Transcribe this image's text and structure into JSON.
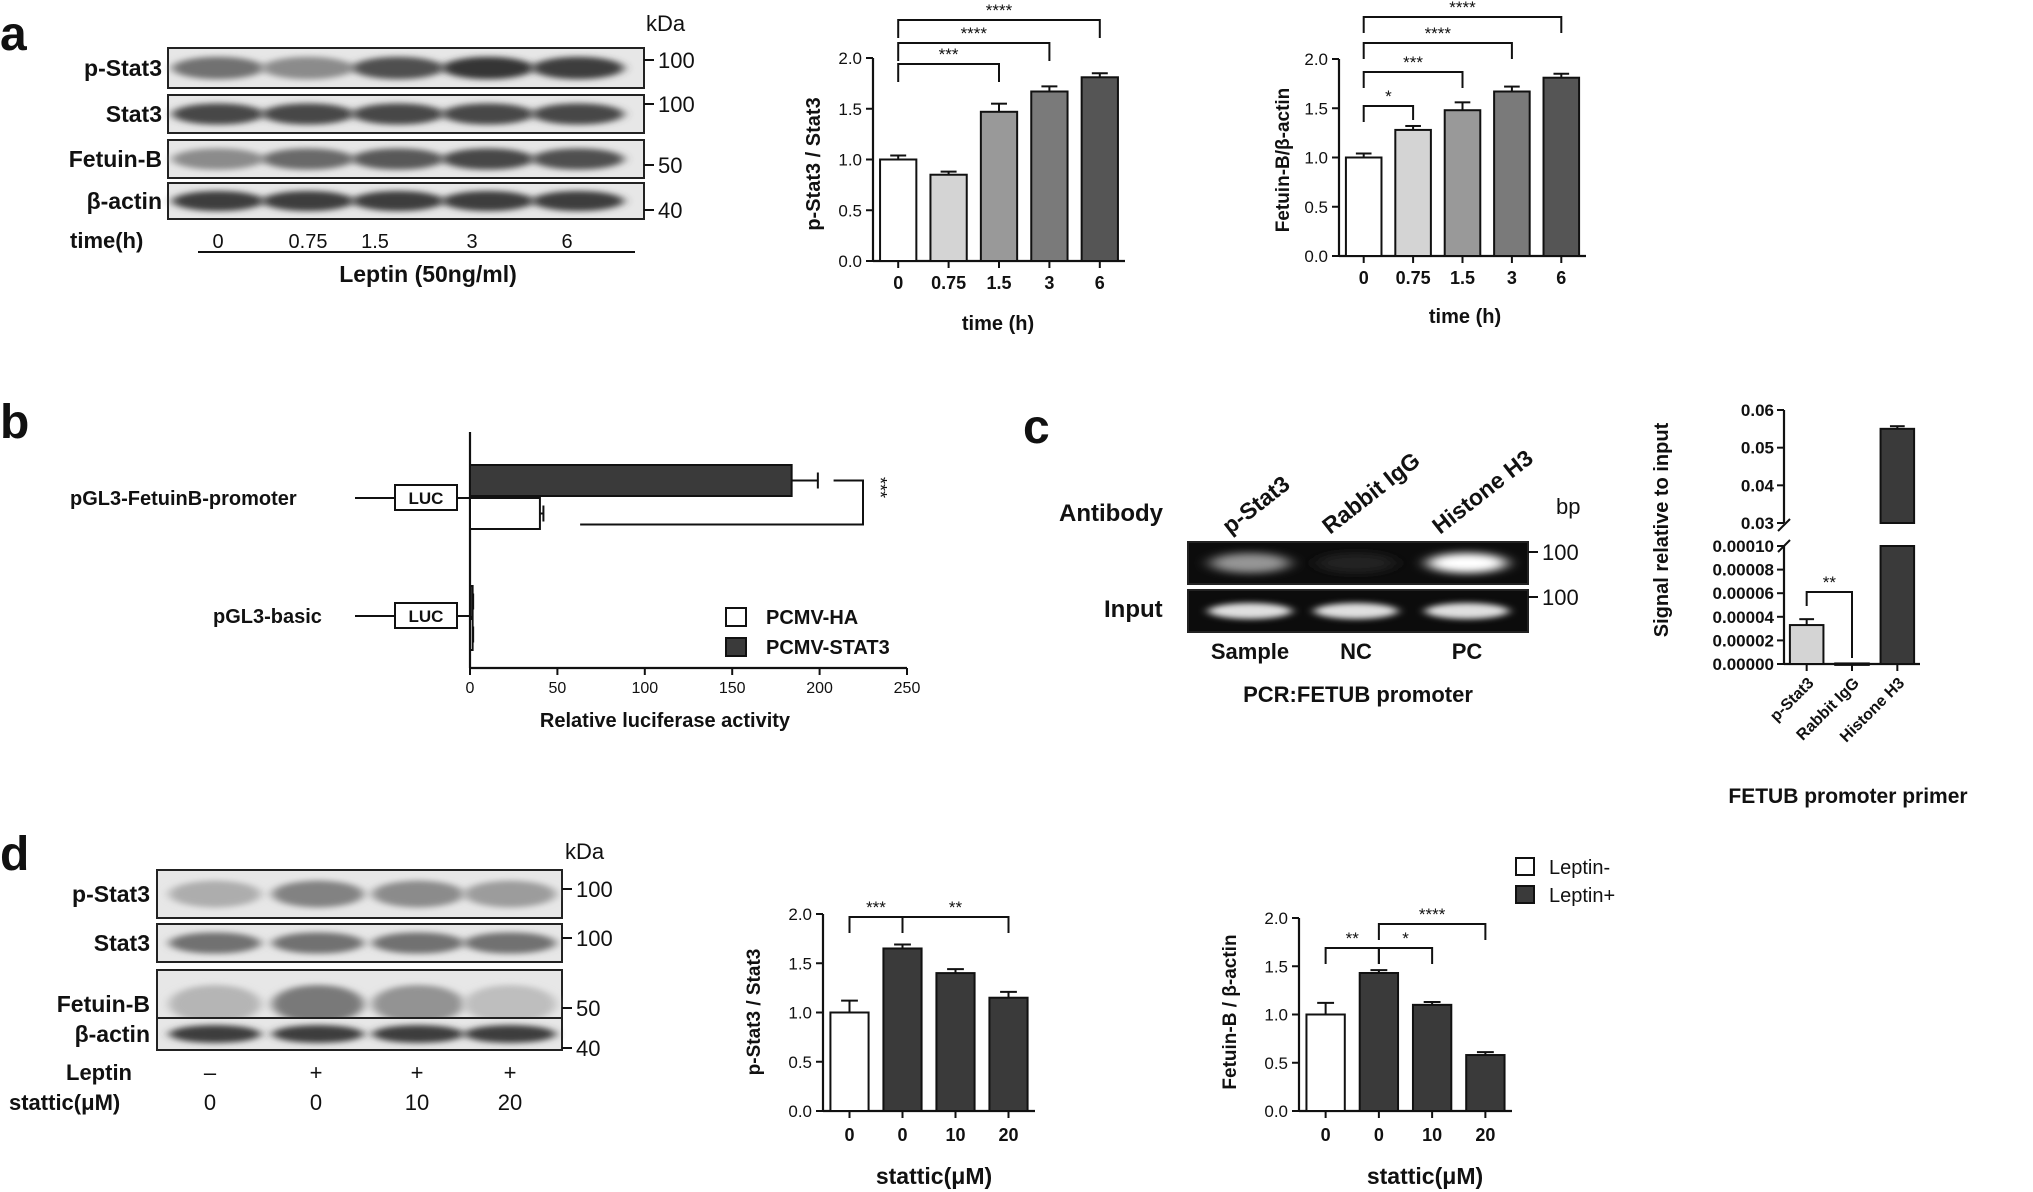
{
  "panels": {
    "a": {
      "letter": "a",
      "blot": {
        "kda_header": "kDa",
        "rows": [
          {
            "label": "p-Stat3",
            "kda": "100",
            "intensity": [
              0.6,
              0.45,
              0.8,
              0.95,
              0.9
            ]
          },
          {
            "label": "Stat3",
            "kda": "100",
            "intensity": [
              0.85,
              0.85,
              0.85,
              0.85,
              0.85
            ]
          },
          {
            "label": "Fetuin-B",
            "kda": "50",
            "intensity": [
              0.45,
              0.65,
              0.75,
              0.85,
              0.8
            ]
          },
          {
            "label": "β-actin",
            "kda": "40",
            "intensity": [
              0.9,
              0.9,
              0.9,
              0.9,
              0.9
            ]
          }
        ],
        "condition_label": "time(h)",
        "lane_values": [
          "0",
          "0.75",
          "1.5",
          "3",
          "6"
        ],
        "treatment_label": "Leptin (50ng/ml)"
      }
    },
    "b": {
      "letter": "b",
      "construct_labels": [
        "pGL3-FetuinB-promoter",
        "pGL3-basic"
      ],
      "luc": "LUC"
    },
    "c": {
      "letter": "c",
      "gel": {
        "antibody_label": "Antibody",
        "antibodies": [
          "p-Stat3",
          "Rabbit IgG",
          "Histone H3"
        ],
        "bp_header": "bp",
        "input_label": "Input",
        "bp_values": [
          "100",
          "100"
        ],
        "lane_labels": [
          "Sample",
          "NC",
          "PC"
        ],
        "pcr_label": "PCR:FETUB promoter",
        "top_intensity": [
          0.55,
          0.05,
          1.0
        ],
        "input_intensity": [
          0.9,
          0.9,
          0.9
        ]
      }
    },
    "d": {
      "letter": "d",
      "blot": {
        "kda_header": "kDa",
        "rows": [
          {
            "label": "p-Stat3",
            "kda": "100",
            "intensity": [
              0.25,
              0.5,
              0.45,
              0.35
            ]
          },
          {
            "label": "Stat3",
            "kda": "100",
            "intensity": [
              0.6,
              0.6,
              0.6,
              0.6
            ]
          },
          {
            "label": "Fetuin-B",
            "kda": "50",
            "intensity": [
              0.2,
              0.55,
              0.4,
              0.15
            ]
          },
          {
            "label": "β-actin",
            "kda": "40",
            "intensity": [
              0.9,
              0.9,
              0.9,
              0.9
            ]
          }
        ],
        "leptin_label": "Leptin",
        "leptin_values": [
          "–",
          "+",
          "+",
          "+"
        ],
        "stattic_label": "stattic(μM)",
        "stattic_values": [
          "0",
          "0",
          "10",
          "20"
        ]
      }
    }
  },
  "chart_data": [
    {
      "id": "a-pstat3",
      "type": "bar",
      "categories": [
        "0",
        "0.75",
        "1.5",
        "3",
        "6"
      ],
      "values": [
        1.0,
        0.85,
        1.47,
        1.67,
        1.81
      ],
      "errors": [
        0.04,
        0.03,
        0.08,
        0.05,
        0.04
      ],
      "fills": [
        "#ffffff",
        "#d4d4d4",
        "#999999",
        "#7a7a7a",
        "#555555"
      ],
      "yticks": [
        "0.0",
        "0.5",
        "1.0",
        "1.5",
        "2.0"
      ],
      "ylim": [
        0,
        2.0
      ],
      "ylabel": "p-Stat3 / Stat3",
      "xlabel": "time (h)",
      "significance": [
        {
          "from": 0,
          "to": 2,
          "label": "***"
        },
        {
          "from": 0,
          "to": 3,
          "label": "****"
        },
        {
          "from": 0,
          "to": 4,
          "label": "****"
        }
      ]
    },
    {
      "id": "a-fetuinb",
      "type": "bar",
      "categories": [
        "0",
        "0.75",
        "1.5",
        "3",
        "6"
      ],
      "values": [
        1.0,
        1.28,
        1.48,
        1.67,
        1.81
      ],
      "errors": [
        0.04,
        0.04,
        0.08,
        0.05,
        0.04
      ],
      "fills": [
        "#ffffff",
        "#d4d4d4",
        "#999999",
        "#7a7a7a",
        "#555555"
      ],
      "yticks": [
        "0.0",
        "0.5",
        "1.0",
        "1.5",
        "2.0"
      ],
      "ylim": [
        0,
        2.0
      ],
      "ylabel": "Fetuin-B/β-actin",
      "xlabel": "time (h)",
      "significance": [
        {
          "from": 0,
          "to": 1,
          "label": "*"
        },
        {
          "from": 0,
          "to": 2,
          "label": "***"
        },
        {
          "from": 0,
          "to": 3,
          "label": "****"
        },
        {
          "from": 0,
          "to": 4,
          "label": "****"
        }
      ]
    },
    {
      "id": "b-luciferase",
      "type": "bar",
      "orientation": "horizontal",
      "groups": [
        "pGL3-FetuinB-promoter",
        "pGL3-basic"
      ],
      "series": [
        {
          "name": "PCMV-HA",
          "values": [
            40,
            1.5
          ],
          "errors": [
            2,
            0.3
          ],
          "fill": "#ffffff"
        },
        {
          "name": "PCMV-STAT3",
          "values": [
            184,
            1.5
          ],
          "errors": [
            15,
            0.3
          ],
          "fill": "#3a3a3a"
        }
      ],
      "xticks": [
        "0",
        "50",
        "100",
        "150",
        "200",
        "250"
      ],
      "xlim": [
        0,
        250
      ],
      "xlabel": "Relative luciferase activity",
      "legend_position": "bottom-right",
      "significance": [
        {
          "label": "***"
        }
      ]
    },
    {
      "id": "c-chip",
      "type": "bar",
      "axis_break": true,
      "categories": [
        "p-Stat3",
        "Rabbit IgG",
        "Histone H3"
      ],
      "values": [
        3.3e-05,
        5e-07,
        0.055
      ],
      "errors": [
        5e-06,
        0.0,
        0.0007
      ],
      "fills": [
        "#d4d4d4",
        "#3a3a3a",
        "#3a3a3a"
      ],
      "yticks_lower": [
        "0.00000",
        "0.00002",
        "0.00004",
        "0.00006",
        "0.00008",
        "0.00010"
      ],
      "yticks_upper": [
        "0.03",
        "0.04",
        "0.05",
        "0.06"
      ],
      "ylim_lower": [
        0,
        0.0001
      ],
      "ylim_upper": [
        0.03,
        0.06
      ],
      "ylabel": "Signal relative to input",
      "xlabel": "FETUB promoter primer",
      "significance": [
        {
          "from": 0,
          "to": 1,
          "label": "**"
        }
      ]
    },
    {
      "id": "d-pstat3",
      "type": "bar",
      "categories": [
        "0",
        "0",
        "10",
        "20"
      ],
      "values": [
        1.0,
        1.65,
        1.4,
        1.15
      ],
      "errors": [
        0.12,
        0.04,
        0.04,
        0.06
      ],
      "fills": [
        "#ffffff",
        "#3a3a3a",
        "#3a3a3a",
        "#3a3a3a"
      ],
      "yticks": [
        "0.0",
        "0.5",
        "1.0",
        "1.5",
        "2.0"
      ],
      "ylim": [
        0,
        2.0
      ],
      "ylabel": "p-Stat3 / Stat3",
      "xlabel": "stattic(μM)",
      "significance": [
        {
          "from": 0,
          "to": 1,
          "label": "***"
        },
        {
          "from": 1,
          "to": 3,
          "label": "**"
        }
      ]
    },
    {
      "id": "d-fetuinb",
      "type": "bar",
      "categories": [
        "0",
        "0",
        "10",
        "20"
      ],
      "values": [
        1.0,
        1.43,
        1.1,
        0.58
      ],
      "errors": [
        0.12,
        0.03,
        0.03,
        0.03
      ],
      "fills": [
        "#ffffff",
        "#3a3a3a",
        "#3a3a3a",
        "#3a3a3a"
      ],
      "yticks": [
        "0.0",
        "0.5",
        "1.0",
        "1.5",
        "2.0"
      ],
      "ylim": [
        0,
        2.0
      ],
      "ylabel": "Fetuin-B / β-actin",
      "xlabel": "stattic(μM)",
      "legend": [
        {
          "name": "Leptin-",
          "fill": "#ffffff"
        },
        {
          "name": "Leptin+",
          "fill": "#3a3a3a"
        }
      ],
      "legend_position": "top",
      "significance": [
        {
          "from": 0,
          "to": 1,
          "label": "**"
        },
        {
          "from": 1,
          "to": 2,
          "label": "*"
        },
        {
          "from": 1,
          "to": 3,
          "label": "****"
        }
      ]
    }
  ]
}
